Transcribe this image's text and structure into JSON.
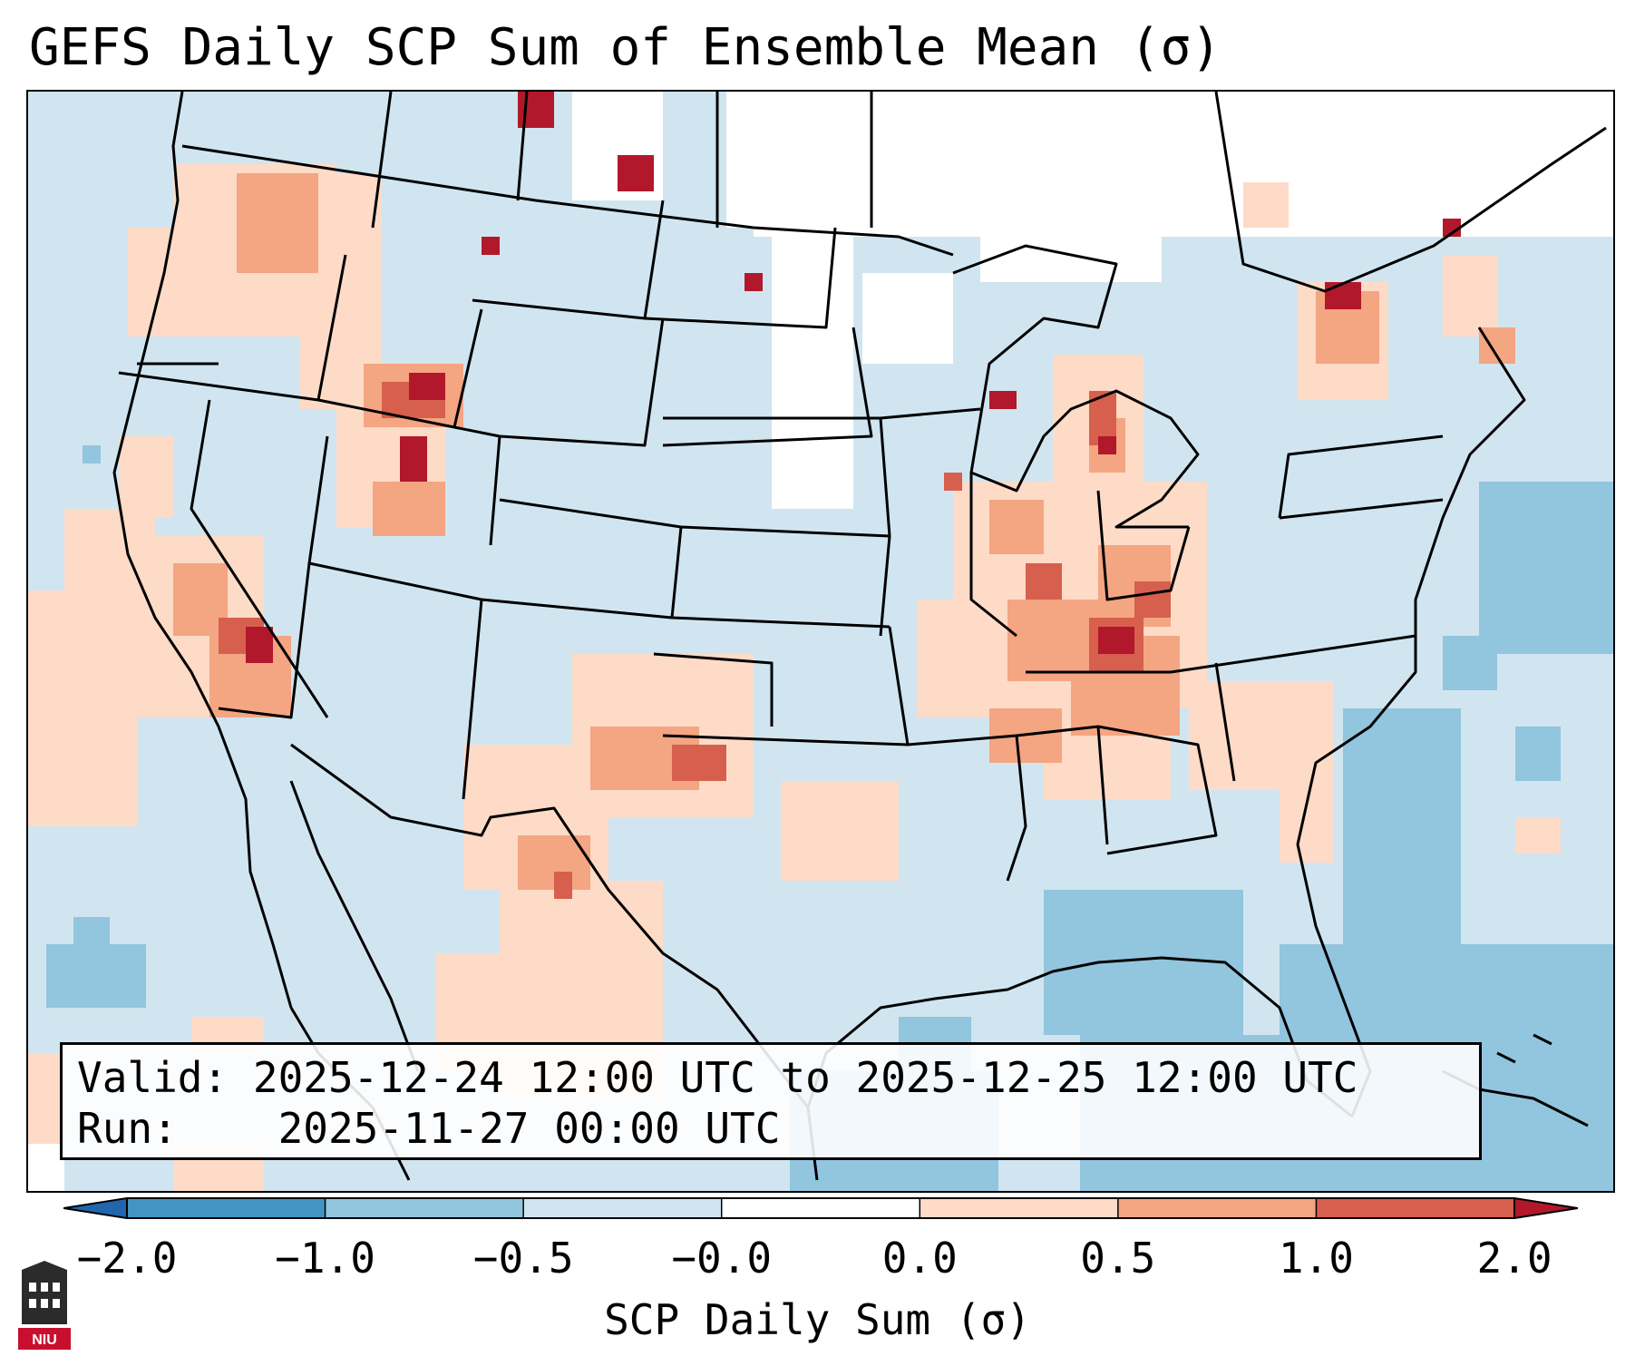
{
  "title": "GEFS Daily SCP Sum of Ensemble Mean (σ)",
  "info": {
    "valid_label": "Valid:",
    "valid_value": "2025-12-24 12:00 UTC to 2025-12-25 12:00 UTC",
    "run_label": "Run:",
    "run_value": "2025-11-27 00:00 UTC"
  },
  "colorbar": {
    "label": "SCP Daily Sum (σ)",
    "ticks": [
      "−2.0",
      "−1.0",
      "−0.5",
      "−0.0",
      "0.0",
      "0.5",
      "1.0",
      "2.0"
    ],
    "colors": [
      "#2166ac",
      "#4393c3",
      "#92c5de",
      "#d1e5f0",
      "#ffffff",
      "#fddbc7",
      "#f4a582",
      "#d6604d",
      "#b2182b"
    ]
  },
  "logo": {
    "text": "NIU",
    "color": "#c8102e"
  },
  "map_colors": {
    "background": "#d1e5f0",
    "light_red": "#fddbc7",
    "mid_red": "#f4a582",
    "red": "#d6604d",
    "dark_red": "#b2182b",
    "light_blue": "#92c5de",
    "white": "#ffffff",
    "borders": "#000000"
  }
}
